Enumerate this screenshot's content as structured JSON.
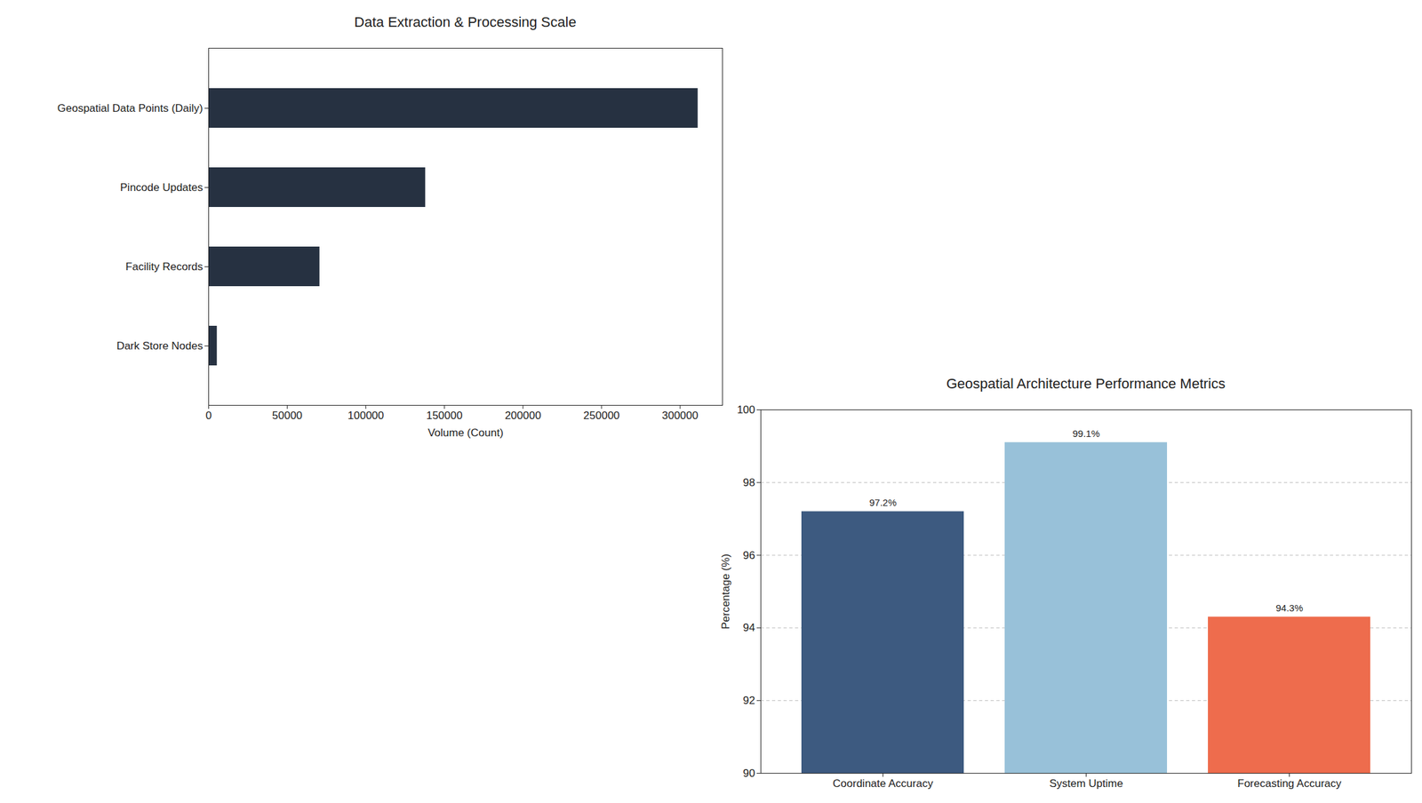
{
  "chart_data": [
    {
      "type": "bar",
      "title": "Data Extraction & Processing Scale",
      "orientation": "horizontal",
      "categories": [
        "Geospatial Data Points (Daily)",
        "Pincode Updates",
        "Facility Records",
        "Dark Store Nodes"
      ],
      "values": [
        311400,
        138000,
        70700,
        5400
      ],
      "color": "#263141",
      "x_label": "Volume (Count)",
      "xlim": [
        0,
        327000
      ],
      "xticks": [
        0,
        50000,
        100000,
        150000,
        200000,
        250000,
        300000
      ],
      "grid": false
    },
    {
      "type": "bar",
      "title": "Geospatial Architecture Performance Metrics",
      "categories": [
        "Coordinate Accuracy",
        "System Uptime",
        "Forecasting Accuracy"
      ],
      "values": [
        97.2,
        99.1,
        94.3
      ],
      "value_labels": [
        "97.2%",
        "99.1%",
        "94.3%"
      ],
      "colors": [
        "#3d5a80",
        "#98c1d9",
        "#ee6c4d"
      ],
      "y_label": "Percentage (%)",
      "ylim": [
        90,
        100
      ],
      "yticks": [
        90,
        92,
        94,
        96,
        98,
        100
      ],
      "grid": true,
      "data_labels": true
    }
  ]
}
